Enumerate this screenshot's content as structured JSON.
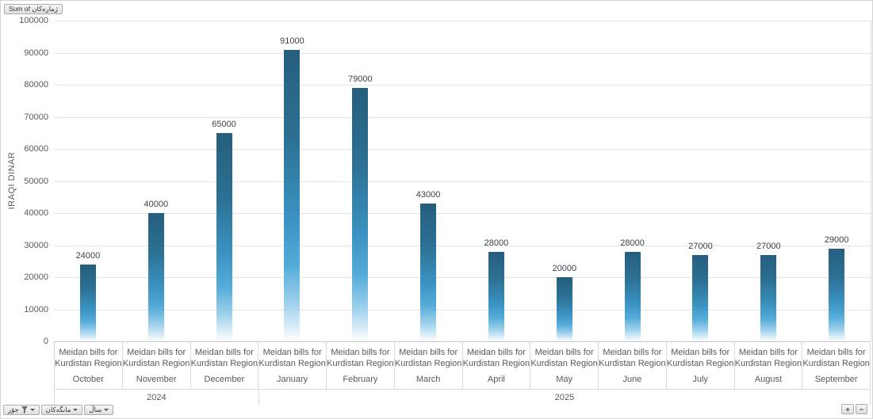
{
  "pivot_chart": {
    "value_field_button": "Sum of ژمارەکان",
    "axis_field_buttons": [
      {
        "label": "جۆر",
        "has_filter": true,
        "has_caret": true
      },
      {
        "label": "مانگەکان",
        "has_filter": false,
        "has_caret": true
      },
      {
        "label": "ساڵ",
        "has_filter": false,
        "has_caret": true
      }
    ],
    "expand_button": "+",
    "collapse_button": "−"
  },
  "chart_data": {
    "type": "bar",
    "title": "",
    "xlabel": "",
    "ylabel": "IRAQI DINAR",
    "ylim": [
      0,
      100000
    ],
    "ytick_step": 10000,
    "grid": true,
    "legend": "none",
    "data_labels": true,
    "categories": [
      "October",
      "November",
      "December",
      "January",
      "February",
      "March",
      "April",
      "May",
      "June",
      "July",
      "August",
      "September"
    ],
    "series": [
      {
        "name": "Sum of ژمارەکان",
        "values": [
          24000,
          40000,
          65000,
          91000,
          79000,
          43000,
          28000,
          20000,
          28000,
          27000,
          27000,
          29000
        ]
      }
    ],
    "category_group_label_lines": [
      "Meidan bills for",
      "Kurdistan Region"
    ],
    "year_groups": [
      {
        "label": "2024",
        "span": 3
      },
      {
        "label": "2025",
        "span": 9
      }
    ],
    "bar_gradient": [
      "#265E7D",
      "#3A93C2",
      "#FFFFFF"
    ],
    "colors": {
      "gridline": "#E4E4E4",
      "axis_text": "#595959",
      "data_label": "#3F3F3F"
    }
  }
}
